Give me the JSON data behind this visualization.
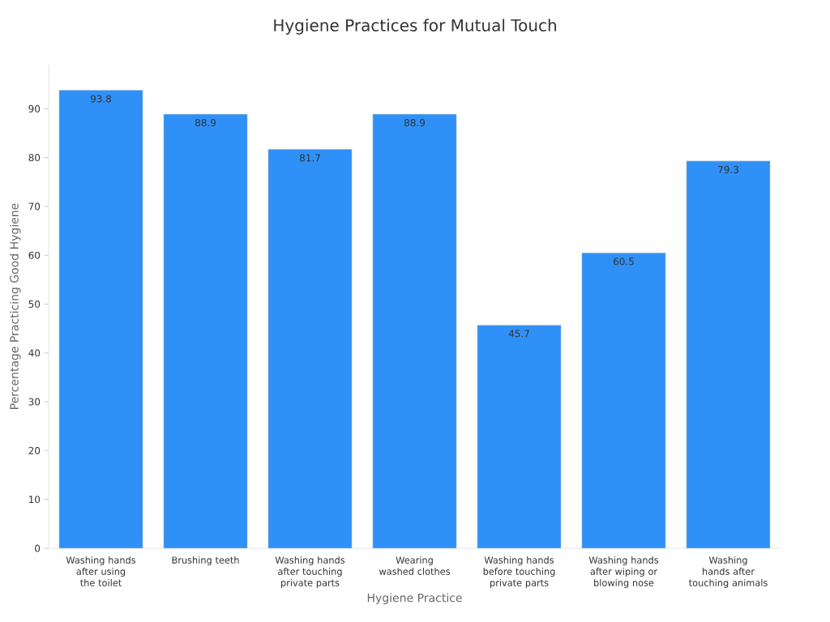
{
  "chart_data": {
    "type": "bar",
    "title": "Hygiene Practices for Mutual Touch",
    "xlabel": "Hygiene Practice",
    "ylabel": "Percentage Practicing Good Hygiene",
    "categories": [
      "Washing hands after using the toilet",
      "Brushing teeth",
      "Washing hands after touching private parts",
      "Wearing washed clothes",
      "Washing hands before touching private parts",
      "Washing hands after wiping or blowing nose",
      "Washing hands after touching animals"
    ],
    "values": [
      93.8,
      88.9,
      81.7,
      88.9,
      45.7,
      60.5,
      79.3
    ],
    "color": "#2f91f7",
    "ylim": [
      0,
      99
    ],
    "yticks": [
      0,
      10,
      20,
      30,
      40,
      50,
      60,
      70,
      80,
      90
    ],
    "data_labels": true,
    "grid": false
  }
}
